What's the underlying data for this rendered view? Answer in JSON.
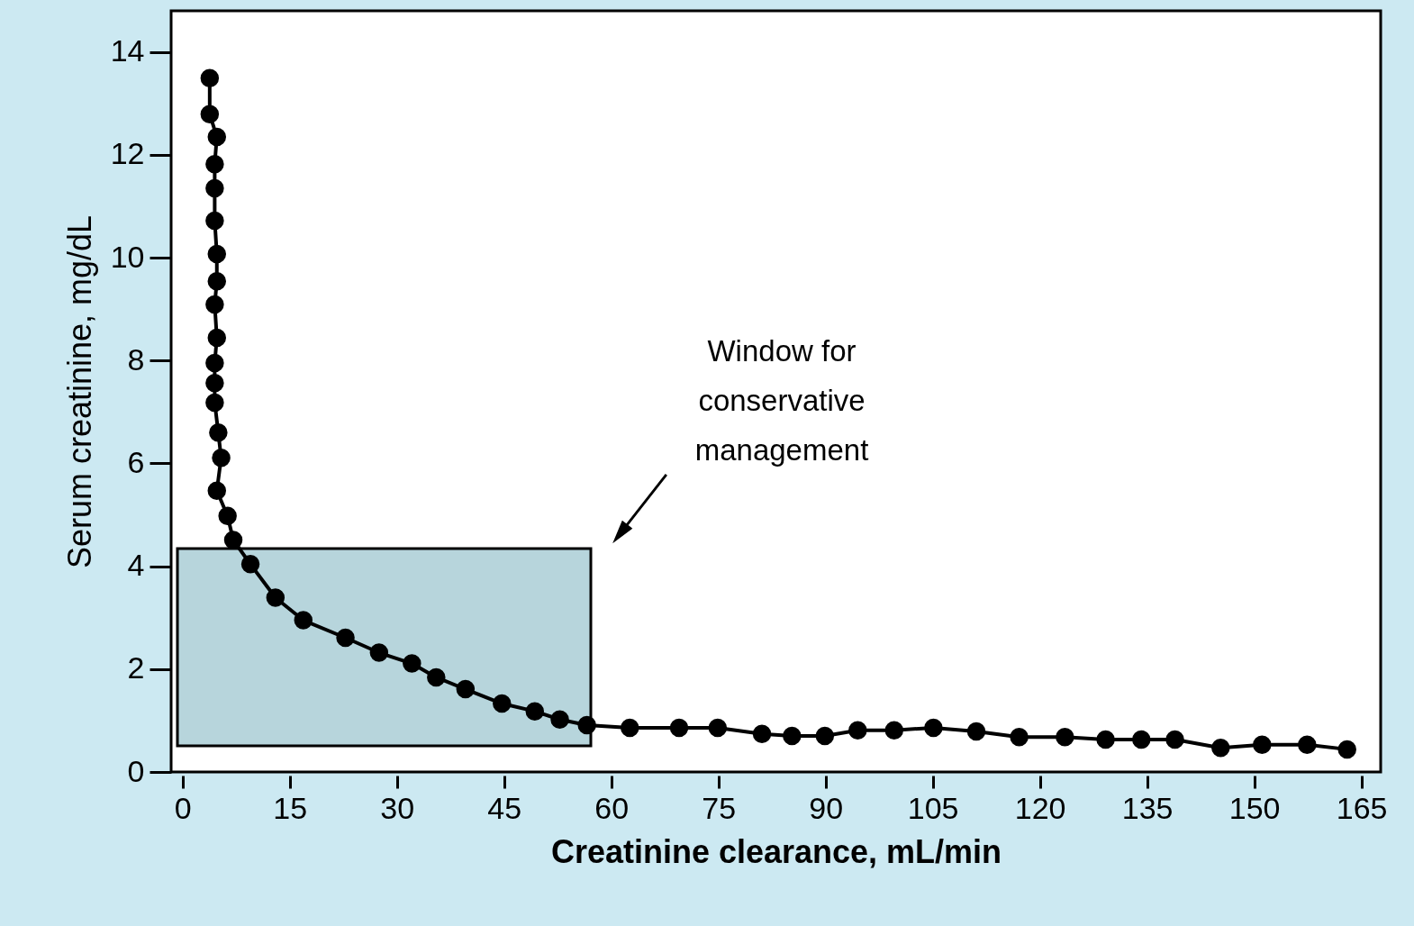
{
  "chart_data": {
    "type": "line",
    "xlabel": "Creatinine clearance, mL/min",
    "ylabel": "Serum creatinine, mg/dL",
    "x": [
      3.8,
      3.8,
      4.8,
      4.5,
      4.5,
      4.5,
      4.8,
      4.8,
      4.5,
      4.8,
      4.5,
      4.5,
      4.5,
      5.0,
      5.4,
      4.8,
      6.3,
      7.1,
      9.5,
      13.0,
      16.9,
      22.8,
      27.5,
      32.1,
      35.5,
      39.6,
      44.7,
      49.3,
      52.8,
      56.6,
      62.6,
      69.5,
      74.9,
      81.1,
      85.3,
      89.9,
      94.5,
      99.6,
      105.1,
      111.1,
      117.1,
      123.5,
      129.2,
      134.2,
      138.9,
      145.3,
      151.1,
      157.4,
      163.0
    ],
    "series": [
      {
        "color": "#000000",
        "values": [
          13.49,
          12.79,
          12.35,
          11.82,
          11.35,
          10.72,
          10.07,
          9.54,
          9.09,
          8.44,
          7.95,
          7.56,
          7.18,
          6.6,
          6.11,
          5.47,
          4.98,
          4.51,
          4.04,
          3.39,
          2.95,
          2.61,
          2.32,
          2.11,
          1.84,
          1.61,
          1.33,
          1.18,
          1.02,
          0.91,
          0.86,
          0.86,
          0.86,
          0.74,
          0.7,
          0.7,
          0.81,
          0.81,
          0.86,
          0.79,
          0.68,
          0.68,
          0.63,
          0.63,
          0.63,
          0.47,
          0.53,
          0.53,
          0.44
        ]
      }
    ],
    "marker": "circle",
    "line_style": "solid",
    "grid": false,
    "xlim": [
      -1.6,
      167.7
    ],
    "xticks": [
      0,
      15,
      30,
      45,
      60,
      75,
      90,
      105,
      120,
      135,
      150,
      165
    ],
    "ylim": [
      0,
      14.8
    ],
    "yticks": [
      0,
      2,
      4,
      6,
      8,
      10,
      12,
      14
    ],
    "annotations": [
      "Window for\nconservative\nmanagement"
    ]
  }
}
